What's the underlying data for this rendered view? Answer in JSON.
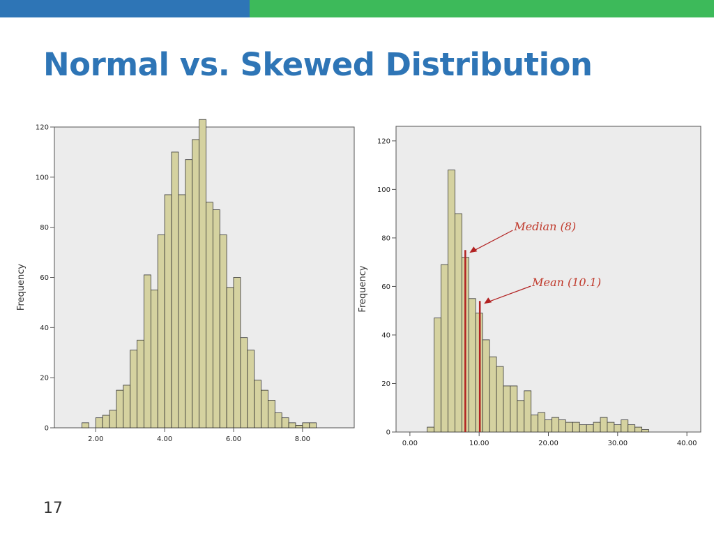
{
  "slide": {
    "title": "Normal vs. Skewed Distribution",
    "page_number": "17",
    "colors": {
      "title": "#2e75b6",
      "bar_top_left": "#2e75b6",
      "bar_top_right": "#3dba5a"
    }
  },
  "chart_data": [
    {
      "type": "bar",
      "ylabel": "Frequency",
      "xlim": [
        0.8,
        9.5
      ],
      "ylim": [
        0,
        120
      ],
      "yticks": [
        0,
        20,
        40,
        60,
        80,
        100,
        120
      ],
      "ytick_labels": [
        "0",
        "20",
        "40",
        "60",
        "80",
        "100",
        "120"
      ],
      "xticks": [
        2,
        4,
        6,
        8
      ],
      "xtick_labels": [
        "2.00",
        "4.00",
        "6.00",
        "8.00"
      ],
      "bin_start": 1.6,
      "bin_width": 0.2,
      "values": [
        2,
        0,
        4,
        5,
        7,
        15,
        17,
        31,
        35,
        61,
        55,
        77,
        93,
        110,
        93,
        107,
        115,
        123,
        90,
        87,
        77,
        56,
        60,
        36,
        31,
        19,
        15,
        11,
        6,
        4,
        2,
        1,
        2,
        2
      ],
      "grid": false,
      "colors": {
        "bar": "#d5d2a0",
        "bar_edge": "#333333",
        "plot_bg": "#ececec"
      }
    },
    {
      "type": "bar",
      "ylabel": "Frequency",
      "xlim": [
        -2,
        42
      ],
      "ylim": [
        0,
        126
      ],
      "yticks": [
        0,
        20,
        40,
        60,
        80,
        100,
        120
      ],
      "ytick_labels": [
        "0",
        "20",
        "40",
        "60",
        "80",
        "100",
        "120"
      ],
      "xticks": [
        0,
        10,
        20,
        30,
        40
      ],
      "xtick_labels": [
        "0.00",
        "10.00",
        "20.00",
        "30.00",
        "40.00"
      ],
      "bin_start": 2.5,
      "bin_width": 1,
      "values": [
        2,
        47,
        69,
        108,
        90,
        72,
        55,
        49,
        38,
        31,
        27,
        19,
        19,
        13,
        17,
        7,
        8,
        5,
        6,
        5,
        4,
        4,
        3,
        3,
        4,
        6,
        4,
        3,
        5,
        3,
        2,
        1
      ],
      "grid": false,
      "colors": {
        "bar": "#d5d2a0",
        "bar_edge": "#333333",
        "plot_bg": "#ececec",
        "marker": "#b22222"
      },
      "annotations": [
        {
          "label": "Median (8)",
          "x": 8,
          "value": 75
        },
        {
          "label": "Mean (10.1)",
          "x": 10.1,
          "value": 54
        }
      ]
    }
  ]
}
